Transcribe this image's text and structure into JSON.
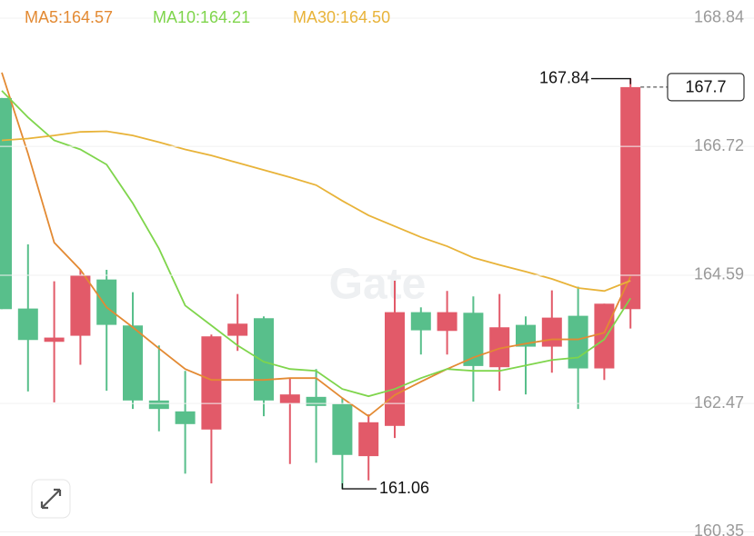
{
  "chart_data": {
    "type": "candlestick",
    "categories": [
      null,
      null,
      null,
      null,
      null,
      null,
      null,
      null,
      null,
      null,
      null,
      null,
      null,
      null,
      null,
      null,
      null,
      null,
      null,
      null,
      null,
      null,
      null,
      null,
      null
    ],
    "open": [
      167.52,
      164.04,
      163.49,
      163.59,
      164.52,
      163.76,
      162.52,
      162.34,
      162.04,
      163.59,
      163.88,
      162.47,
      162.58,
      162.46,
      161.6,
      162.1,
      163.98,
      163.67,
      163.97,
      163.07,
      163.77,
      163.41,
      163.92,
      163.05,
      164.03
    ],
    "high": [
      167.52,
      165.1,
      164.49,
      164.68,
      164.68,
      164.31,
      163.43,
      163.01,
      163.61,
      164.28,
      163.91,
      162.89,
      163.04,
      162.56,
      162.29,
      164.5,
      164.06,
      164.33,
      164.24,
      164.28,
      163.91,
      164.34,
      164.4,
      164.12,
      167.84
    ],
    "low": [
      164.03,
      162.67,
      162.49,
      163.11,
      162.68,
      162.38,
      162.01,
      161.31,
      161.15,
      163.34,
      162.26,
      161.47,
      161.49,
      161.06,
      161.2,
      161.9,
      163.28,
      163.28,
      162.5,
      162.68,
      162.62,
      162.98,
      162.38,
      162.86,
      163.71
    ],
    "close": [
      164.03,
      163.52,
      163.56,
      164.59,
      163.77,
      162.52,
      162.38,
      162.13,
      163.58,
      163.79,
      162.52,
      162.62,
      162.43,
      161.62,
      162.16,
      163.98,
      163.68,
      163.98,
      163.09,
      163.73,
      163.41,
      163.89,
      163.05,
      164.12,
      167.7
    ],
    "up_color": "#e25a69",
    "down_color": "#58bf8b",
    "series": [
      {
        "name": "MA5:164.57",
        "color": "#e38a33",
        "values": [
          167.94,
          166.6,
          165.13,
          164.68,
          164.06,
          163.73,
          163.38,
          163.04,
          162.86,
          162.86,
          162.86,
          162.89,
          162.89,
          162.56,
          162.26,
          162.61,
          162.83,
          163.04,
          163.23,
          163.38,
          163.46,
          163.53,
          163.53,
          163.64,
          164.57
        ]
      },
      {
        "name": "MA10:164.21",
        "color": "#7fd54c",
        "values": [
          167.64,
          167.2,
          166.82,
          166.67,
          166.42,
          165.78,
          165.03,
          164.09,
          163.76,
          163.43,
          163.16,
          163.04,
          163.01,
          162.71,
          162.59,
          162.71,
          162.89,
          163.04,
          163.01,
          163.01,
          163.1,
          163.19,
          163.23,
          163.53,
          164.21
        ]
      },
      {
        "name": "MA30:164.50",
        "color": "#e8b339",
        "values": [
          166.82,
          166.85,
          166.9,
          166.96,
          166.97,
          166.9,
          166.79,
          166.67,
          166.57,
          166.45,
          166.33,
          166.21,
          166.08,
          165.82,
          165.58,
          165.4,
          165.22,
          165.07,
          164.88,
          164.76,
          164.65,
          164.53,
          164.38,
          164.33,
          164.5
        ]
      }
    ],
    "ylim": [
      160.28,
      169.14
    ],
    "yticks": [
      168.84,
      166.72,
      164.59,
      162.47,
      160.35
    ],
    "grid": true,
    "watermark": "Gate"
  }
}
